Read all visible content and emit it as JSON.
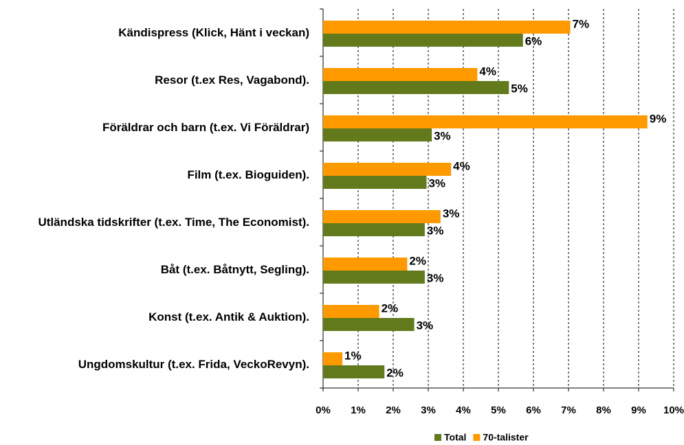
{
  "chart_data": {
    "type": "barh",
    "categories": [
      "Kändispress (Klick, Hänt i veckan)",
      "Resor (t.ex Res, Vagabond).",
      "Föräldrar och barn (t.ex. Vi Föräldrar)",
      "Film (t.ex. Bioguiden).",
      "Utländska tidskrifter (t.ex. Time, The Economist).",
      "Båt (t.ex. Båtnytt, Segling).",
      "Konst (t.ex. Antik & Auktion).",
      "Ungdomskultur (t.ex. Frida, VeckoRevyn)."
    ],
    "series": [
      {
        "name": "70-talister",
        "color": "#ff9900",
        "values": [
          7.05,
          4.4,
          9.25,
          3.65,
          3.35,
          2.4,
          1.6,
          0.55
        ],
        "value_labels": [
          "7%",
          "4%",
          "9%",
          "4%",
          "3%",
          "2%",
          "2%",
          "1%"
        ]
      },
      {
        "name": "Total",
        "color": "#627a1c",
        "values": [
          5.7,
          5.3,
          3.1,
          2.95,
          2.9,
          2.9,
          2.6,
          1.75
        ],
        "value_labels": [
          "6%",
          "5%",
          "3%",
          "3%",
          "3%",
          "3%",
          "3%",
          "2%"
        ]
      }
    ],
    "legend_order": [
      "Total",
      "70-talister"
    ],
    "xlim": [
      0,
      10
    ],
    "xticks": [
      {
        "value": 0,
        "label": "0%"
      },
      {
        "value": 1,
        "label": "1%"
      },
      {
        "value": 2,
        "label": "2%"
      },
      {
        "value": 3,
        "label": "3%"
      },
      {
        "value": 4,
        "label": "4%"
      },
      {
        "value": 5,
        "label": "5%"
      },
      {
        "value": 6,
        "label": "6%"
      },
      {
        "value": 7,
        "label": "7%"
      },
      {
        "value": 8,
        "label": "8%"
      },
      {
        "value": 9,
        "label": "9%"
      },
      {
        "value": 10,
        "label": "10%"
      }
    ],
    "grid": true,
    "legend": "bottom"
  }
}
